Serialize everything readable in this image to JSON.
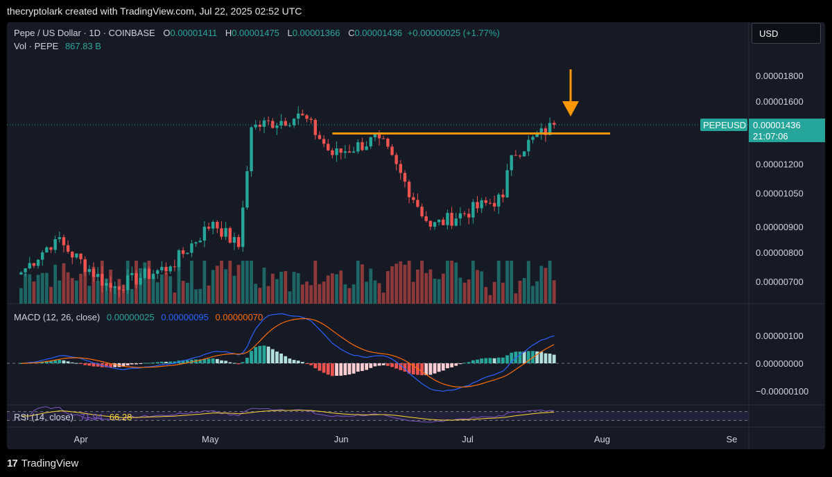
{
  "credit": "thecryptolark created with TradingView.com, Jul 22, 2025 02:52 UTC",
  "currency": "USD",
  "logo": "TradingView",
  "legend": {
    "symbol": "Pepe / US Dollar · 1D · COINBASE",
    "o_label": "O",
    "o": "0.00001411",
    "h_label": "H",
    "h": "0.00001475",
    "l_label": "L",
    "l": "0.00001366",
    "c_label": "C",
    "c": "0.00001436",
    "change": "+0.00000025 (+1.77%)",
    "vol_label": "Vol · PEPE",
    "vol": "867.83 B"
  },
  "macd_legend": {
    "label": "MACD (12, 26, close)",
    "hist": "0.00000025",
    "macd": "0.00000095",
    "signal": "0.00000070"
  },
  "rsi_legend": {
    "label": "RSI (14, close)",
    "rsi": "71.94",
    "ma": "66.28"
  },
  "chart_data": {
    "type": "candlestick",
    "symbol": "PEPEUSD",
    "interval": "1D",
    "price_axis": {
      "scale": "log",
      "ticks": [
        "0.00001800",
        "0.00001600",
        "0.00001200",
        "0.00001050",
        "0.00000900",
        "0.00000800",
        "0.00000700"
      ]
    },
    "x_axis": {
      "ticks": [
        "Apr",
        "May",
        "Jun",
        "Jul",
        "Aug",
        "Se"
      ]
    },
    "last_price": {
      "symbol_label": "PEPEUSD",
      "value": "0.00001436",
      "countdown": "21:07:06"
    },
    "resistance_line": 1.38e-05,
    "colors": {
      "up": "#26a69a",
      "down": "#ef5350",
      "annotation": "#ff9800",
      "macd": "#2962ff",
      "signal": "#ff6d00",
      "rsi": "#7e57c2",
      "rsi_ma": "#fdd835"
    },
    "key_prices": [
      {
        "date": "2025-03-18",
        "close": 7.3e-06
      },
      {
        "date": "2025-03-26",
        "close": 8.5e-06
      },
      {
        "date": "2025-04-08",
        "close": 6.8e-06
      },
      {
        "date": "2025-04-22",
        "close": 7.5e-06
      },
      {
        "date": "2025-05-02",
        "close": 9.2e-06
      },
      {
        "date": "2025-05-08",
        "close": 8.2e-06
      },
      {
        "date": "2025-05-11",
        "close": 1.42e-05
      },
      {
        "date": "2025-05-23",
        "close": 1.5e-05
      },
      {
        "date": "2025-05-30",
        "close": 1.25e-05
      },
      {
        "date": "2025-06-10",
        "close": 1.35e-05
      },
      {
        "date": "2025-06-22",
        "close": 9e-06
      },
      {
        "date": "2025-07-09",
        "close": 1.03e-05
      },
      {
        "date": "2025-07-11",
        "close": 1.25e-05
      },
      {
        "date": "2025-07-21",
        "close": 1.436e-05
      }
    ],
    "volume_axis_ticks": [],
    "macd_axis": {
      "ticks": [
        "0.00000100",
        "0.00000000",
        "−0.00000100"
      ]
    },
    "macd_values": {
      "histogram": 2.5e-07,
      "macd": 9.5e-07,
      "signal": 7e-07
    },
    "rsi_values": {
      "rsi": 71.94,
      "rsi_ma": 66.28
    }
  }
}
